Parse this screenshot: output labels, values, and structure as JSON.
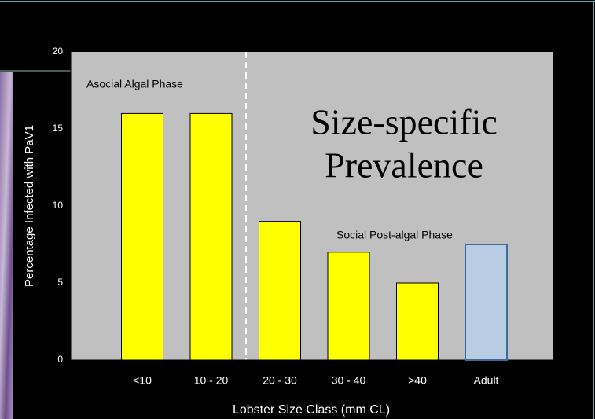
{
  "chart_data": {
    "type": "bar",
    "y_label": "Percentage Infected with PaV1",
    "x_label": "Lobster Size Class (mm CL)",
    "annotations": [
      "Asocial Algal Phase",
      "Social Post-algal Phase",
      "Size-specific",
      "Prevalence"
    ],
    "categories": [
      "<10",
      "10 - 20",
      "20 - 30",
      "30 - 40",
      ">40",
      "Adult"
    ],
    "values": [
      16,
      16,
      9,
      7,
      5,
      7.5
    ],
    "colors": [
      "#ffff00",
      "#ffff00",
      "#ffff00",
      "#ffff00",
      "#ffff00",
      "#b8cce4"
    ],
    "edge_colors": [
      "#000000",
      "#000000",
      "#000000",
      "#000000",
      "#000000",
      "#3d6b96"
    ],
    "ylim": [
      0,
      20
    ],
    "yticks": [
      0,
      5,
      10,
      15,
      20
    ],
    "plot_background": "#c0c0c0"
  }
}
